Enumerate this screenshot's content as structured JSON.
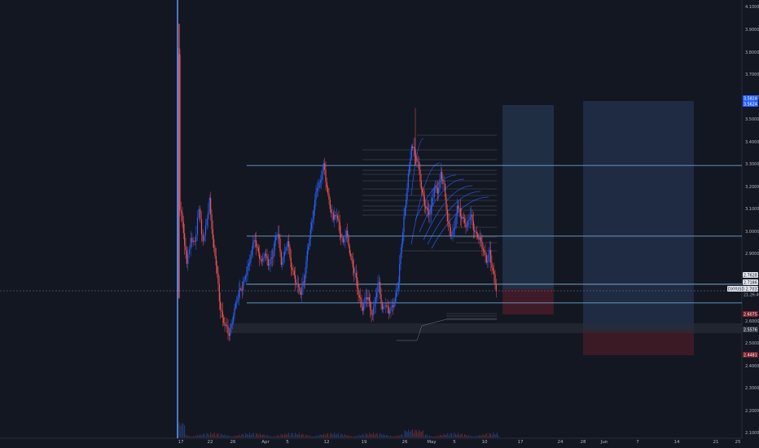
{
  "chart_data": {
    "type": "candlestick",
    "symbol_label": "DXYUSD",
    "y_ticks": [
      "4.1000",
      "3.9000",
      "3.8000",
      "3.7000",
      "3.6000",
      "3.5000",
      "3.4000",
      "3.3000",
      "3.2000",
      "3.1000",
      "3.0000",
      "2.9000",
      "2.6000",
      "2.5000",
      "2.4000",
      "2.3000",
      "2.2000",
      "2.1000"
    ],
    "x_ticks": [
      "17",
      "22",
      "26",
      "Apr",
      "5",
      "12",
      "19",
      "26",
      "May",
      "5",
      "10",
      "17",
      "24",
      "28",
      "Jun",
      "7",
      "14",
      "21",
      "25"
    ],
    "price_tags": [
      {
        "label": "3.5824",
        "kind": "blue"
      },
      {
        "label": "3.5624",
        "kind": "blue"
      },
      {
        "label": "2.7628",
        "kind": "light"
      },
      {
        "label": "2.7186",
        "kind": "light"
      },
      {
        "label": "2.7037",
        "kind": "current"
      },
      {
        "label": "21:26:49",
        "kind": "timer"
      },
      {
        "label": "2.6075",
        "kind": "red"
      },
      {
        "label": "2.5576",
        "kind": "gray"
      },
      {
        "label": "2.4481",
        "kind": "red"
      }
    ],
    "horizontal_levels": [
      3.2925,
      2.9782,
      2.7628,
      2.68
    ],
    "crosshair_price": 2.7186,
    "ylim": [
      2.1,
      4.15
    ],
    "colors": {
      "up": "#2962ff",
      "down": "#ef5350",
      "level": "#7fb9ea",
      "background": "#131722",
      "grid": "#1e222d"
    }
  }
}
